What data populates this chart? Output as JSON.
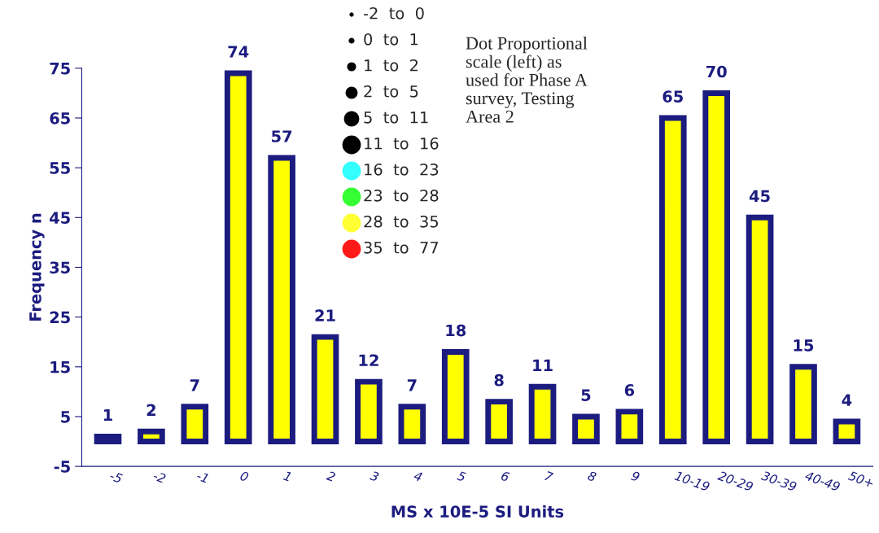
{
  "chart_data": {
    "type": "bar",
    "xlabel": "MS x 10E-5 SI Units",
    "ylabel": "Frequency n",
    "categories": [
      "-5",
      "-2",
      "-1",
      "0",
      "1",
      "2",
      "3",
      "4",
      "5",
      "6",
      "7",
      "8",
      "9",
      "10-19",
      "20-29",
      "30-39",
      "40-49",
      "50+"
    ],
    "values": [
      1,
      2,
      7,
      74,
      57,
      21,
      12,
      7,
      18,
      8,
      11,
      5,
      6,
      65,
      70,
      45,
      15,
      4
    ],
    "color": "#ffff00",
    "ylim": [
      -5,
      75
    ],
    "yticks": [
      -5,
      5,
      15,
      25,
      35,
      45,
      55,
      65,
      75
    ],
    "data_labels": true,
    "grid": false,
    "legend": false,
    "annotations": [
      "-2  to  0",
      "0  to  1",
      "1  to  2",
      "2  to  5",
      "5  to  11",
      "11  to  16",
      "16  to  23",
      "23  to  28",
      "28  to  35",
      "35  to  77",
      "Dot Proportional\nscale (left) as\nused for Phase A\nsurvey, Testing\nArea 2"
    ]
  }
}
